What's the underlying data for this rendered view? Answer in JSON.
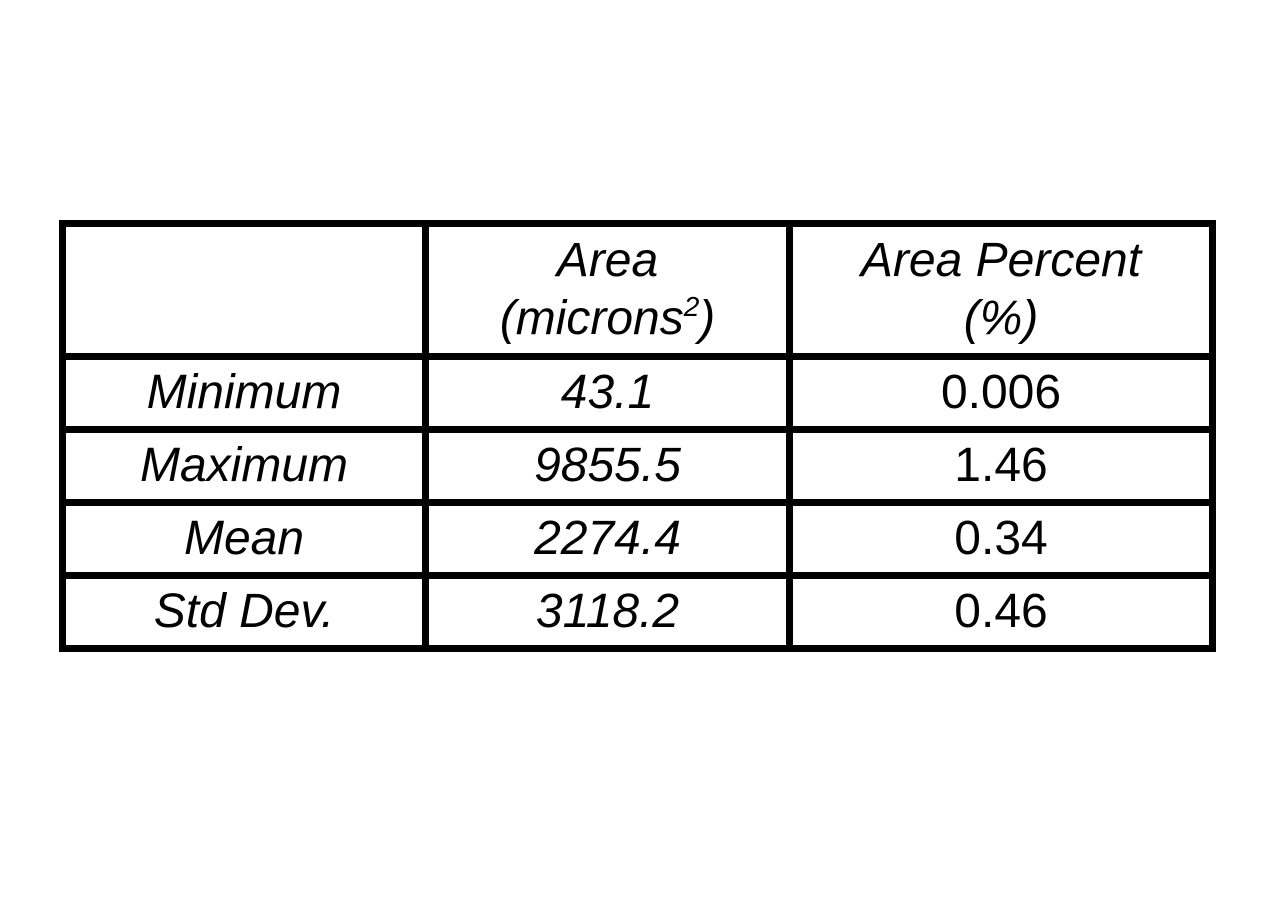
{
  "table": {
    "headers": [
      {
        "line1": "",
        "line2": ""
      },
      {
        "line1": "Area",
        "line2": "(microns",
        "sup": "2",
        "line2_end": ")"
      },
      {
        "line1": "Area Percent",
        "line2": "(%)"
      }
    ],
    "rows": [
      {
        "label": "Minimum",
        "area": "43.1",
        "percent": "0.006"
      },
      {
        "label": "Maximum",
        "area": "9855.5",
        "percent": "1.46"
      },
      {
        "label": "Mean",
        "area": "2274.4",
        "percent": "0.34"
      },
      {
        "label": "Std Dev.",
        "area": "3118.2",
        "percent": "0.46"
      }
    ]
  }
}
